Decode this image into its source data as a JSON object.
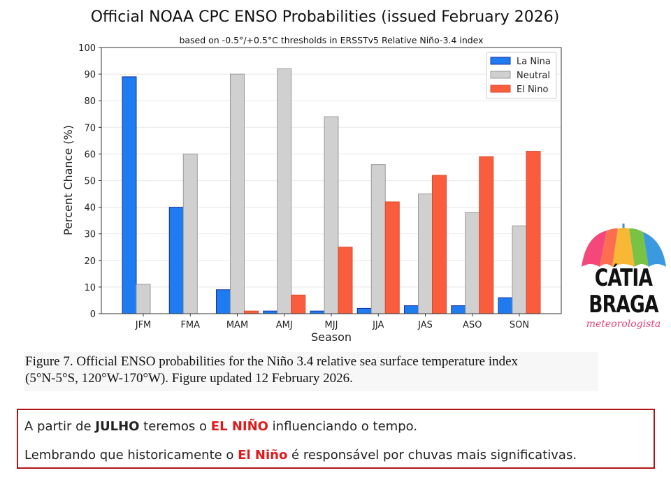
{
  "chart_data": {
    "type": "bar",
    "title": "Official NOAA CPC ENSO Probabilities (issued February 2026)",
    "subtitle": "based on -0.5°/+0.5°C thresholds in ERSSTv5 Relative Niño-3.4 index",
    "xlabel": "Season",
    "ylabel": "Percent Chance (%)",
    "ylim": [
      0,
      100
    ],
    "yticks": [
      0,
      10,
      20,
      30,
      40,
      50,
      60,
      70,
      80,
      90,
      100
    ],
    "grid": true,
    "legend_position": "top-right",
    "categories": [
      "JFM",
      "FMA",
      "MAM",
      "AMJ",
      "MJJ",
      "JJA",
      "JAS",
      "ASO",
      "SON"
    ],
    "series": [
      {
        "name": "La Nina",
        "color": "#1f7bf0",
        "edge": "#1630a8",
        "values": [
          89,
          40,
          9,
          1,
          1,
          2,
          3,
          3,
          6
        ]
      },
      {
        "name": "Neutral",
        "color": "#d0d0d0",
        "edge": "#9a9a9a",
        "values": [
          11,
          60,
          90,
          92,
          74,
          56,
          45,
          38,
          33
        ]
      },
      {
        "name": "El Nino",
        "color": "#fa5d3d",
        "edge": "#d84a2c",
        "values": [
          0,
          0,
          1,
          7,
          25,
          42,
          52,
          59,
          61
        ]
      }
    ]
  },
  "caption": {
    "line1": "Figure 7. Official ENSO probabilities for the Niño 3.4 relative sea surface temperature index",
    "line2": "(5°N-5°S, 120°W-170°W). Figure updated 12 February 2026."
  },
  "note": {
    "line1": {
      "a": "A partir de ",
      "b": "JULHO",
      "c": " teremos o ",
      "d": "EL NIÑO",
      "e": " influenciando o tempo."
    },
    "line2": {
      "a": "Lembrando que historicamente o ",
      "b": "El Niño",
      "c": " é responsável por chuvas mais significativas."
    },
    "accent_color": "#e0191c",
    "border_color": "#b01515"
  },
  "logo": {
    "line1": "CÁTIA",
    "line2": "BRAGA",
    "line3": "meteorologista"
  }
}
